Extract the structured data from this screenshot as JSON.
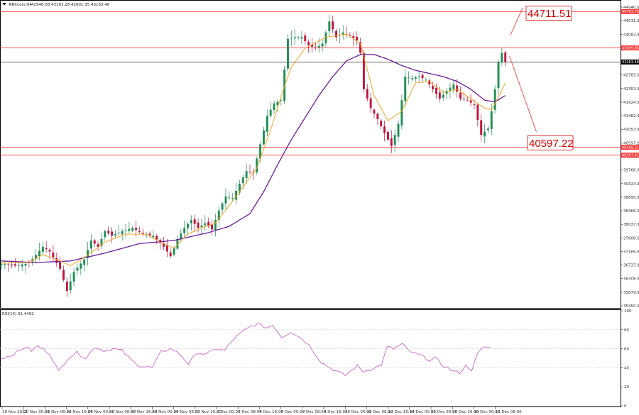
{
  "header": {
    "symbol": "#Bitcoin,H4",
    "ohlc": "42946.08 43183.28 42801.35 43163.48",
    "rsi_label": "RSI(14) 61.4492"
  },
  "colors": {
    "up": "#1f8f55",
    "down": "#c0143c",
    "ma_fast": "#f5a623",
    "ma_slow": "#6a1b9a",
    "rsi": "#cc66cc",
    "level_line": "#ff3b3b",
    "callout": "#d60000",
    "current_line": "#000000"
  },
  "chart_data": [
    {
      "type": "candlestick",
      "title": "#Bitcoin,H4",
      "indicators": [
        "moving average (fast)",
        "moving average (slow)"
      ],
      "ylim": [
        35450.6,
        45040.9
      ],
      "price_ticks": [
        "44940.90",
        "44511.90",
        "44082.90",
        "43655.90",
        "43183.48",
        "42783.90",
        "42353.90",
        "41924.90",
        "41482.90",
        "41053.90",
        "40597.22",
        "40225.90",
        "39766.90",
        "39324.90",
        "38895.90",
        "38466.90",
        "38037.90",
        "37608.90",
        "37166.90",
        "36737.90",
        "36308.90",
        "35879.90",
        "35450.90"
      ],
      "x_ticks": [
        "18 Nov 2023",
        "20 Nov 00:00",
        "21 Nov 08:00",
        "22 Nov 16:00",
        "24 Nov 00:00",
        "25 Nov 08:00",
        "26 Nov 16:00",
        "28 Nov 00:00",
        "29 Nov 08:00",
        "30 Nov 16:00",
        "2 Dec 00:00",
        "3 Dec 08:00",
        "4 Dec 16:00",
        "6 Dec 00:00",
        "7 Dec 08:00",
        "8 Dec 16:00",
        "10 Dec 00:00",
        "11 Dec 08:00",
        "12 Dec 16:00",
        "14 Dec 00:00",
        "15 Dec 08:00",
        "16 Dec 16:00",
        "18 Dec 00:00",
        "19 Dec 08:00"
      ],
      "current_price": 43163.48,
      "current_label": "43163.48",
      "levels": [
        {
          "value": 44763.76,
          "label": "44763.76"
        },
        {
          "value": 43609.86,
          "label": "43609.86"
        },
        {
          "value": 40458.31,
          "label": "40458.31"
        },
        {
          "value": 40207.42,
          "label": "40207.42"
        }
      ],
      "callouts": [
        {
          "value": 44711.51,
          "label": "44711.51"
        },
        {
          "value": 40597.22,
          "label": "40597.22"
        }
      ],
      "anchors_close": [
        [
          0,
          36760
        ],
        [
          4,
          36700
        ],
        [
          8,
          36780
        ],
        [
          12,
          37300
        ],
        [
          14,
          37150
        ],
        [
          17,
          36600
        ],
        [
          19,
          35900
        ],
        [
          21,
          36500
        ],
        [
          24,
          36900
        ],
        [
          26,
          37500
        ],
        [
          28,
          37300
        ],
        [
          30,
          37800
        ],
        [
          32,
          37650
        ],
        [
          35,
          37800
        ],
        [
          38,
          37900
        ],
        [
          41,
          37700
        ],
        [
          44,
          37650
        ],
        [
          47,
          37300
        ],
        [
          49,
          37000
        ],
        [
          51,
          37550
        ],
        [
          53,
          37900
        ],
        [
          55,
          38150
        ],
        [
          57,
          37900
        ],
        [
          59,
          38050
        ],
        [
          61,
          37850
        ],
        [
          63,
          38450
        ],
        [
          65,
          38900
        ],
        [
          67,
          38850
        ],
        [
          69,
          39300
        ],
        [
          71,
          39700
        ],
        [
          73,
          39650
        ],
        [
          75,
          40550
        ],
        [
          77,
          41450
        ],
        [
          79,
          41850
        ],
        [
          81,
          41950
        ],
        [
          83,
          43900
        ],
        [
          85,
          43950
        ],
        [
          87,
          43950
        ],
        [
          89,
          43700
        ],
        [
          91,
          43600
        ],
        [
          93,
          43750
        ],
        [
          95,
          44450
        ],
        [
          97,
          43950
        ],
        [
          99,
          44100
        ],
        [
          101,
          44000
        ],
        [
          103,
          43850
        ],
        [
          104,
          43450
        ],
        [
          105,
          42300
        ],
        [
          107,
          41700
        ],
        [
          109,
          41350
        ],
        [
          111,
          40900
        ],
        [
          113,
          40500
        ],
        [
          115,
          41200
        ],
        [
          117,
          42700
        ],
        [
          119,
          42650
        ],
        [
          121,
          42700
        ],
        [
          123,
          42600
        ],
        [
          125,
          42300
        ],
        [
          127,
          42000
        ],
        [
          129,
          42250
        ],
        [
          131,
          42450
        ],
        [
          133,
          42000
        ],
        [
          135,
          41950
        ],
        [
          137,
          41800
        ],
        [
          139,
          40850
        ],
        [
          141,
          41050
        ],
        [
          142,
          41600
        ],
        [
          143,
          42300
        ],
        [
          144,
          43150
        ],
        [
          145,
          43450
        ],
        [
          146,
          43163
        ]
      ],
      "ma_fast_anchors": [
        [
          0,
          36780
        ],
        [
          8,
          36800
        ],
        [
          12,
          37050
        ],
        [
          16,
          36900
        ],
        [
          20,
          36700
        ],
        [
          24,
          36950
        ],
        [
          30,
          37450
        ],
        [
          36,
          37700
        ],
        [
          42,
          37700
        ],
        [
          46,
          37450
        ],
        [
          50,
          37250
        ],
        [
          54,
          37700
        ],
        [
          58,
          37900
        ],
        [
          62,
          38050
        ],
        [
          66,
          38600
        ],
        [
          70,
          39200
        ],
        [
          74,
          39800
        ],
        [
          78,
          41000
        ],
        [
          82,
          42400
        ],
        [
          84,
          43000
        ],
        [
          88,
          43600
        ],
        [
          94,
          43950
        ],
        [
          100,
          44050
        ],
        [
          104,
          43750
        ],
        [
          108,
          42100
        ],
        [
          112,
          41300
        ],
        [
          116,
          41600
        ],
        [
          120,
          42500
        ],
        [
          124,
          42550
        ],
        [
          128,
          42200
        ],
        [
          132,
          42300
        ],
        [
          136,
          42000
        ],
        [
          140,
          41700
        ],
        [
          142,
          41650
        ],
        [
          144,
          42050
        ],
        [
          146,
          42500
        ]
      ],
      "ma_slow_anchors": [
        [
          0,
          36850
        ],
        [
          10,
          36800
        ],
        [
          20,
          36850
        ],
        [
          30,
          37100
        ],
        [
          40,
          37400
        ],
        [
          50,
          37500
        ],
        [
          60,
          37750
        ],
        [
          66,
          37950
        ],
        [
          72,
          38350
        ],
        [
          76,
          39050
        ],
        [
          80,
          39900
        ],
        [
          84,
          40700
        ],
        [
          88,
          41400
        ],
        [
          92,
          42100
        ],
        [
          96,
          42700
        ],
        [
          100,
          43200
        ],
        [
          104,
          43400
        ],
        [
          108,
          43400
        ],
        [
          112,
          43250
        ],
        [
          116,
          43050
        ],
        [
          120,
          42900
        ],
        [
          124,
          42800
        ],
        [
          128,
          42700
        ],
        [
          132,
          42550
        ],
        [
          136,
          42300
        ],
        [
          140,
          41950
        ],
        [
          143,
          41900
        ],
        [
          146,
          42100
        ]
      ],
      "trend_lines": [
        {
          "from": [
            147.5,
            44020
          ],
          "to": [
            151.0,
            44880
          ]
        },
        {
          "from": [
            147.2,
            43350
          ],
          "to": [
            155.0,
            40950
          ]
        }
      ],
      "candle_count": 147,
      "xlim_candles": [
        0,
        180
      ]
    },
    {
      "type": "line",
      "title": "RSI(14) 61.4492",
      "ylim": [
        0,
        100
      ],
      "y_ticks": [
        "100",
        "80",
        "60",
        "40",
        "20",
        "0"
      ],
      "grid_levels": [
        80,
        60,
        40
      ],
      "anchors": [
        [
          0,
          50
        ],
        [
          4,
          54
        ],
        [
          8,
          62
        ],
        [
          10,
          58
        ],
        [
          12,
          63
        ],
        [
          16,
          55
        ],
        [
          19,
          36
        ],
        [
          22,
          50
        ],
        [
          25,
          56
        ],
        [
          28,
          50
        ],
        [
          31,
          62
        ],
        [
          34,
          58
        ],
        [
          37,
          60
        ],
        [
          40,
          58
        ],
        [
          43,
          48
        ],
        [
          46,
          42
        ],
        [
          50,
          40
        ],
        [
          53,
          57
        ],
        [
          56,
          60
        ],
        [
          59,
          55
        ],
        [
          62,
          44
        ],
        [
          65,
          56
        ],
        [
          68,
          54
        ],
        [
          71,
          60
        ],
        [
          74,
          58
        ],
        [
          77,
          70
        ],
        [
          80,
          78
        ],
        [
          83,
          84
        ],
        [
          85,
          86
        ],
        [
          88,
          82
        ],
        [
          90,
          85
        ],
        [
          93,
          72
        ],
        [
          96,
          78
        ],
        [
          99,
          72
        ],
        [
          102,
          64
        ],
        [
          104,
          55
        ],
        [
          106,
          46
        ],
        [
          109,
          40
        ],
        [
          112,
          35
        ],
        [
          114,
          32
        ],
        [
          116,
          37
        ],
        [
          118,
          42
        ],
        [
          120,
          36
        ],
        [
          122,
          38
        ],
        [
          124,
          40
        ],
        [
          126,
          43
        ],
        [
          128,
          62
        ],
        [
          130,
          60
        ],
        [
          133,
          65
        ],
        [
          135,
          58
        ],
        [
          137,
          55
        ],
        [
          139,
          53
        ],
        [
          142,
          48
        ],
        [
          144,
          50
        ],
        [
          146,
          43
        ],
        [
          148,
          40
        ],
        [
          150,
          36
        ],
        [
          152,
          35
        ],
        [
          154,
          42
        ],
        [
          156,
          38
        ],
        [
          158,
          55
        ],
        [
          160,
          62
        ],
        [
          162,
          61
        ]
      ],
      "total_points": 163
    }
  ]
}
